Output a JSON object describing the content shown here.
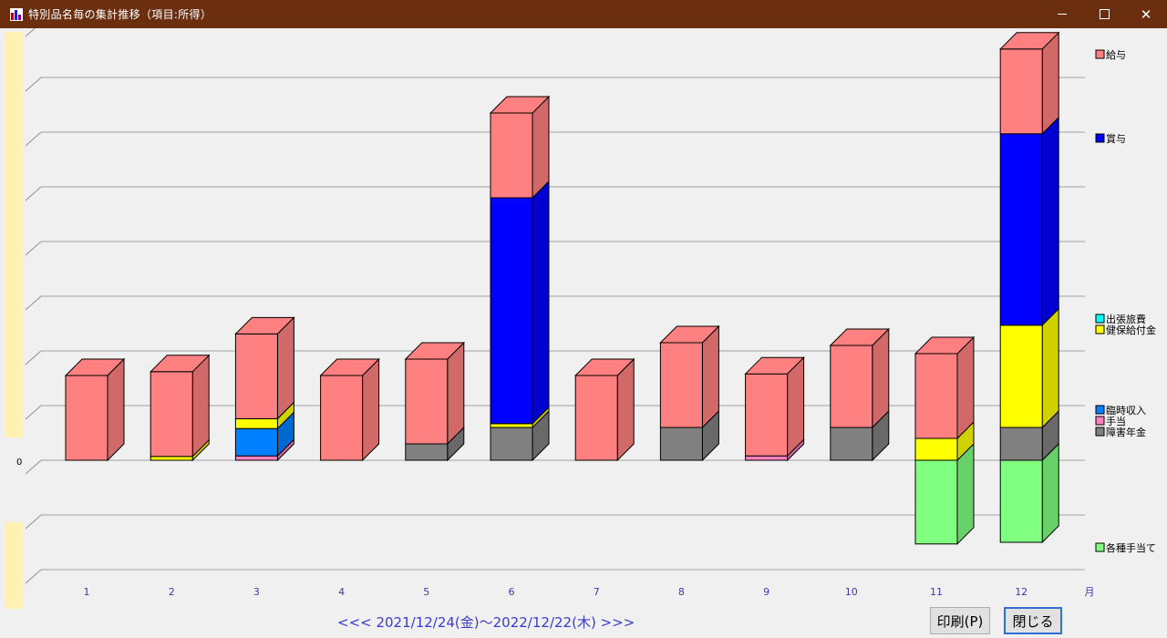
{
  "window": {
    "title": "特別品名毎の集計推移（項目:所得）",
    "controls": [
      "minimize",
      "maximize",
      "close"
    ]
  },
  "chart_data": {
    "type": "bar",
    "stacked": true,
    "three_d": true,
    "categories": [
      "1",
      "2",
      "3",
      "4",
      "5",
      "6",
      "7",
      "8",
      "9",
      "10",
      "11",
      "12"
    ],
    "x_unit": "月",
    "zero_label": "0",
    "series": [
      {
        "name": "各種手当て",
        "color": "#80ff80",
        "values": [
          0,
          0,
          0,
          0,
          0,
          0,
          0,
          0,
          0,
          0,
          -1.53,
          -1.5
        ]
      },
      {
        "name": "障害年金",
        "color": "#808080",
        "values": [
          0,
          0,
          0,
          0,
          0.3,
          0.6,
          0,
          0.6,
          0,
          0.6,
          0,
          0.6
        ]
      },
      {
        "name": "手当",
        "color": "#ff80c0",
        "values": [
          0,
          0,
          0.08,
          0,
          0,
          0,
          0,
          0,
          0.08,
          0,
          0,
          0
        ]
      },
      {
        "name": "臨時収入",
        "color": "#0080ff",
        "values": [
          0,
          0,
          0.5,
          0,
          0,
          0,
          0,
          0,
          0,
          0,
          0,
          0
        ]
      },
      {
        "name": "健保給付金",
        "color": "#ffff00",
        "values": [
          0,
          0.07,
          0.18,
          0,
          0,
          0.07,
          0,
          0,
          0,
          0,
          0.4,
          1.87
        ]
      },
      {
        "name": "出張旅費",
        "color": "#00ffff",
        "values": [
          0,
          0,
          0,
          0,
          0,
          0,
          0,
          0,
          0,
          0,
          0,
          0
        ]
      },
      {
        "name": "賞与",
        "color": "#0000ff",
        "values": [
          0,
          0,
          0,
          0,
          0,
          4.13,
          0,
          0,
          0,
          0,
          0,
          3.5
        ]
      },
      {
        "name": "給与",
        "color": "#ff8080",
        "values": [
          1.55,
          1.55,
          1.55,
          1.55,
          1.55,
          1.55,
          1.55,
          1.55,
          1.5,
          1.5,
          1.55,
          1.55
        ]
      }
    ],
    "ylim": [
      -2,
      8
    ],
    "grid": true,
    "legend_position": "right"
  },
  "footer": {
    "range_text": "<<< 2021/12/24(金)～2022/12/22(木) >>>",
    "print_button": "印刷(P)",
    "close_button": "閉じる"
  }
}
